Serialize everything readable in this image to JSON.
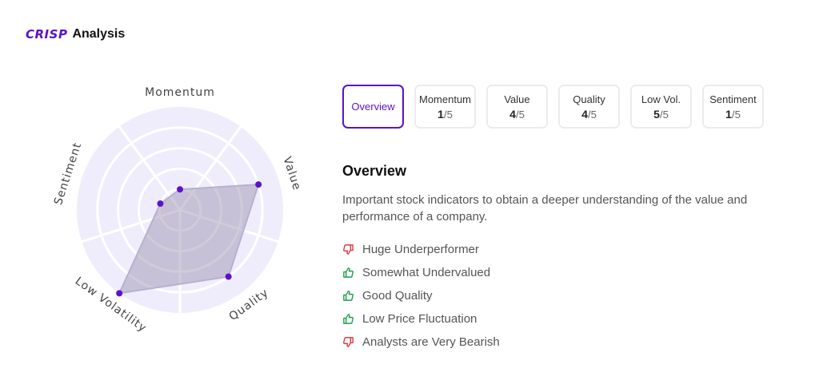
{
  "header": {
    "logo_text": "CRISP",
    "title": "Analysis",
    "brand_color": "#5b13c7"
  },
  "radar": {
    "axes": [
      "Momentum",
      "Value",
      "Quality",
      "Low Volatility",
      "Sentiment"
    ],
    "scores": [
      1,
      4,
      4,
      5,
      1
    ],
    "max": 5
  },
  "tabs": [
    {
      "label": "Overview",
      "score": "",
      "max": "",
      "active": true
    },
    {
      "label": "Momentum",
      "score": "1",
      "max": "/5",
      "active": false
    },
    {
      "label": "Value",
      "score": "4",
      "max": "/5",
      "active": false
    },
    {
      "label": "Quality",
      "score": "4",
      "max": "/5",
      "active": false
    },
    {
      "label": "Low Vol.",
      "score": "5",
      "max": "/5",
      "active": false
    },
    {
      "label": "Sentiment",
      "score": "1",
      "max": "/5",
      "active": false
    }
  ],
  "overview": {
    "title": "Overview",
    "description": "Important stock indicators to obtain a deeper understanding of the value and performance of a company.",
    "indicators": [
      {
        "text": "Huge Underperformer",
        "icon": "thumbs-down-icon",
        "color": "#e0393e"
      },
      {
        "text": "Somewhat Undervalued",
        "icon": "thumbs-up-icon",
        "color": "#1e9e4a"
      },
      {
        "text": "Good Quality",
        "icon": "thumbs-up-icon",
        "color": "#1e9e4a"
      },
      {
        "text": "Low Price Fluctuation",
        "icon": "thumbs-up-icon",
        "color": "#1e9e4a"
      },
      {
        "text": "Analysts are Very Bearish",
        "icon": "thumbs-down-icon",
        "color": "#e0393e"
      }
    ]
  }
}
